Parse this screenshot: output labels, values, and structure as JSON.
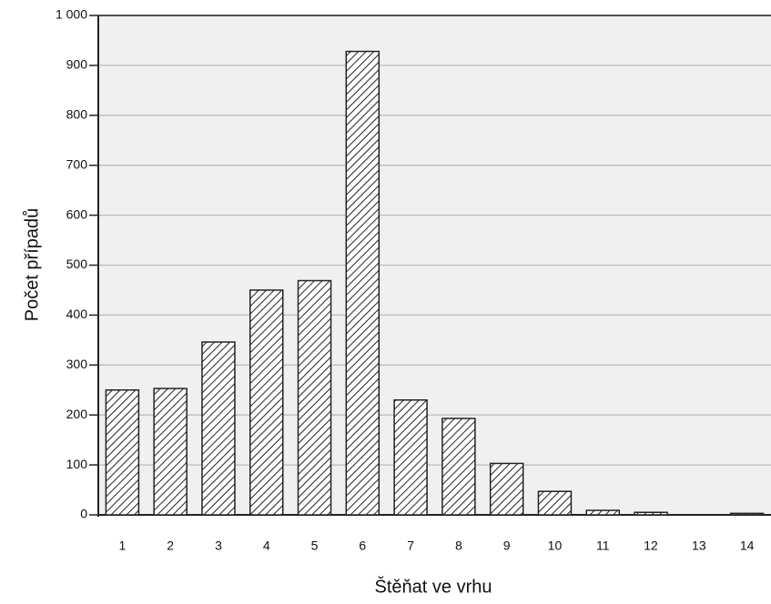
{
  "chart_data": {
    "type": "bar",
    "x_label": "Štěňat ve vrhu",
    "y_label": "Počet případů",
    "categories": [
      "1",
      "2",
      "3",
      "4",
      "5",
      "6",
      "7",
      "8",
      "9",
      "10",
      "11",
      "12",
      "13",
      "14"
    ],
    "values": [
      250,
      253,
      346,
      450,
      469,
      928,
      230,
      193,
      103,
      47,
      9,
      5,
      0,
      3
    ],
    "color": "#222222",
    "ylim": [
      0,
      1000
    ],
    "yticks": [
      0,
      100,
      200,
      300,
      400,
      500,
      600,
      700,
      800,
      900,
      {
        "value": 1000,
        "label": "1 000"
      }
    ],
    "grid": true
  }
}
